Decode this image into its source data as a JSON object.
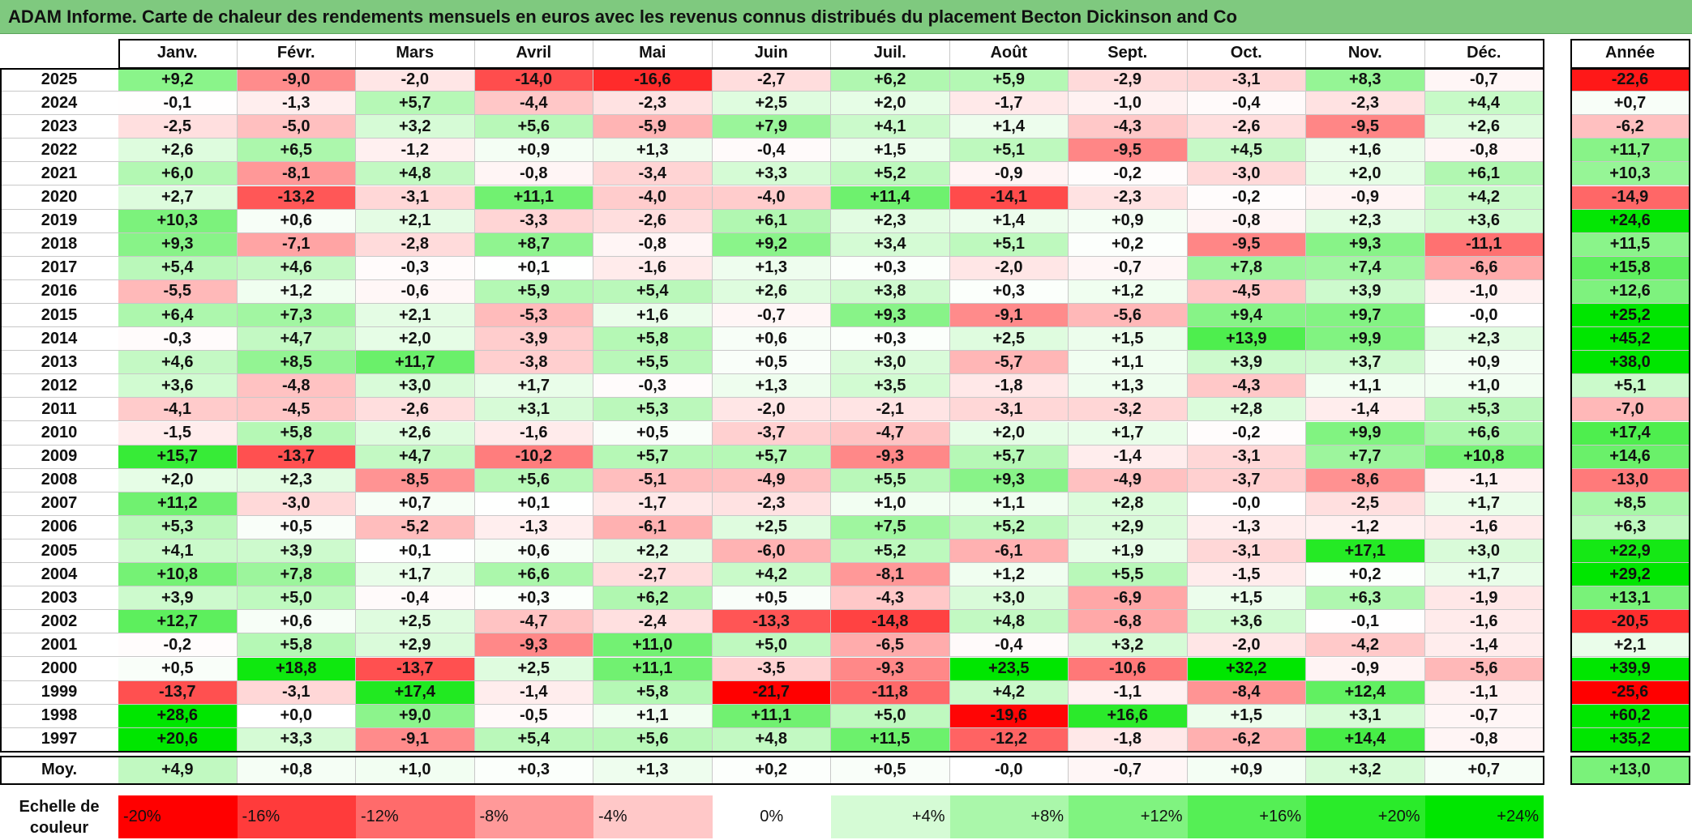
{
  "title": "ADAM Informe. Carte de chaleur des rendements mensuels en euros avec les revenus connus distribués du placement Becton Dickinson and Co",
  "months": [
    "Janv.",
    "Févr.",
    "Mars",
    "Avril",
    "Mai",
    "Juin",
    "Juil.",
    "Août",
    "Sept.",
    "Oct.",
    "Nov.",
    "Déc."
  ],
  "annual_header": "Année",
  "avg_label": "Moy.",
  "scale_label": "Echelle de couleur",
  "chart_data": {
    "type": "heatmap",
    "title": "ADAM Informe. Carte de chaleur des rendements mensuels en euros avec les revenus connus distribués du placement Becton Dickinson and Co",
    "columns": [
      "Janv.",
      "Févr.",
      "Mars",
      "Avril",
      "Mai",
      "Juin",
      "Juil.",
      "Août",
      "Sept.",
      "Oct.",
      "Nov.",
      "Déc."
    ],
    "rows": [
      {
        "year": "2025",
        "values": [
          "+9,2",
          "-9,0",
          "-2,0",
          "-14,0",
          "-16,6",
          "-2,7",
          "+6,2",
          "+5,9",
          "-2,9",
          "-3,1",
          "+8,3",
          "-0,7"
        ],
        "annual": "-22,6"
      },
      {
        "year": "2024",
        "values": [
          "-0,1",
          "-1,3",
          "+5,7",
          "-4,4",
          "-2,3",
          "+2,5",
          "+2,0",
          "-1,7",
          "-1,0",
          "-0,4",
          "-2,3",
          "+4,4"
        ],
        "annual": "+0,7"
      },
      {
        "year": "2023",
        "values": [
          "-2,5",
          "-5,0",
          "+3,2",
          "+5,6",
          "-5,9",
          "+7,9",
          "+4,1",
          "+1,4",
          "-4,3",
          "-2,6",
          "-9,5",
          "+2,6"
        ],
        "annual": "-6,2"
      },
      {
        "year": "2022",
        "values": [
          "+2,6",
          "+6,5",
          "-1,2",
          "+0,9",
          "+1,3",
          "-0,4",
          "+1,5",
          "+5,1",
          "-9,5",
          "+4,5",
          "+1,6",
          "-0,8"
        ],
        "annual": "+11,7"
      },
      {
        "year": "2021",
        "values": [
          "+6,0",
          "-8,1",
          "+4,8",
          "-0,8",
          "-3,4",
          "+3,3",
          "+5,2",
          "-0,9",
          "-0,2",
          "-3,0",
          "+2,0",
          "+6,1"
        ],
        "annual": "+10,3"
      },
      {
        "year": "2020",
        "values": [
          "+2,7",
          "-13,2",
          "-3,1",
          "+11,1",
          "-4,0",
          "-4,0",
          "+11,4",
          "-14,1",
          "-2,3",
          "-0,2",
          "-0,9",
          "+4,2"
        ],
        "annual": "-14,9"
      },
      {
        "year": "2019",
        "values": [
          "+10,3",
          "+0,6",
          "+2,1",
          "-3,3",
          "-2,6",
          "+6,1",
          "+2,3",
          "+1,4",
          "+0,9",
          "-0,8",
          "+2,3",
          "+3,6"
        ],
        "annual": "+24,6"
      },
      {
        "year": "2018",
        "values": [
          "+9,3",
          "-7,1",
          "-2,8",
          "+8,7",
          "-0,8",
          "+9,2",
          "+3,4",
          "+5,1",
          "+0,2",
          "-9,5",
          "+9,3",
          "-11,1"
        ],
        "annual": "+11,5"
      },
      {
        "year": "2017",
        "values": [
          "+5,4",
          "+4,6",
          "-0,3",
          "+0,1",
          "-1,6",
          "+1,3",
          "+0,3",
          "-2,0",
          "-0,7",
          "+7,8",
          "+7,4",
          "-6,6"
        ],
        "annual": "+15,8"
      },
      {
        "year": "2016",
        "values": [
          "-5,5",
          "+1,2",
          "-0,6",
          "+5,9",
          "+5,4",
          "+2,6",
          "+3,8",
          "+0,3",
          "+1,2",
          "-4,5",
          "+3,9",
          "-1,0"
        ],
        "annual": "+12,6"
      },
      {
        "year": "2015",
        "values": [
          "+6,4",
          "+7,3",
          "+2,1",
          "-5,3",
          "+1,6",
          "-0,7",
          "+9,3",
          "-9,1",
          "-5,6",
          "+9,4",
          "+9,7",
          "-0,0"
        ],
        "annual": "+25,2"
      },
      {
        "year": "2014",
        "values": [
          "-0,3",
          "+4,7",
          "+2,0",
          "-3,9",
          "+5,8",
          "+0,6",
          "+0,3",
          "+2,5",
          "+1,5",
          "+13,9",
          "+9,9",
          "+2,3"
        ],
        "annual": "+45,2"
      },
      {
        "year": "2013",
        "values": [
          "+4,6",
          "+8,5",
          "+11,7",
          "-3,8",
          "+5,5",
          "+0,5",
          "+3,0",
          "-5,7",
          "+1,1",
          "+3,9",
          "+3,7",
          "+0,9"
        ],
        "annual": "+38,0"
      },
      {
        "year": "2012",
        "values": [
          "+3,6",
          "-4,8",
          "+3,0",
          "+1,7",
          "-0,3",
          "+1,3",
          "+3,5",
          "-1,8",
          "+1,3",
          "-4,3",
          "+1,1",
          "+1,0"
        ],
        "annual": "+5,1"
      },
      {
        "year": "2011",
        "values": [
          "-4,1",
          "-4,5",
          "-2,6",
          "+3,1",
          "+5,3",
          "-2,0",
          "-2,1",
          "-3,1",
          "-3,2",
          "+2,8",
          "-1,4",
          "+5,3"
        ],
        "annual": "-7,0"
      },
      {
        "year": "2010",
        "values": [
          "-1,5",
          "+5,8",
          "+2,6",
          "-1,6",
          "+0,5",
          "-3,7",
          "-4,7",
          "+2,0",
          "+1,7",
          "-0,2",
          "+9,9",
          "+6,6"
        ],
        "annual": "+17,4"
      },
      {
        "year": "2009",
        "values": [
          "+15,7",
          "-13,7",
          "+4,7",
          "-10,2",
          "+5,7",
          "+5,7",
          "-9,3",
          "+5,7",
          "-1,4",
          "-3,1",
          "+7,7",
          "+10,8"
        ],
        "annual": "+14,6"
      },
      {
        "year": "2008",
        "values": [
          "+2,0",
          "+2,3",
          "-8,5",
          "+5,6",
          "-5,1",
          "-4,9",
          "+5,5",
          "+9,3",
          "-4,9",
          "-3,7",
          "-8,6",
          "-1,1"
        ],
        "annual": "-13,0"
      },
      {
        "year": "2007",
        "values": [
          "+11,2",
          "-3,0",
          "+0,7",
          "+0,1",
          "-1,7",
          "-2,3",
          "+1,0",
          "+1,1",
          "+2,8",
          "-0,0",
          "-2,5",
          "+1,7"
        ],
        "annual": "+8,5"
      },
      {
        "year": "2006",
        "values": [
          "+5,3",
          "+0,5",
          "-5,2",
          "-1,3",
          "-6,1",
          "+2,5",
          "+7,5",
          "+5,2",
          "+2,9",
          "-1,3",
          "-1,2",
          "-1,6"
        ],
        "annual": "+6,3"
      },
      {
        "year": "2005",
        "values": [
          "+4,1",
          "+3,9",
          "+0,1",
          "+0,6",
          "+2,2",
          "-6,0",
          "+5,2",
          "-6,1",
          "+1,9",
          "-3,1",
          "+17,1",
          "+3,0"
        ],
        "annual": "+22,9"
      },
      {
        "year": "2004",
        "values": [
          "+10,8",
          "+7,8",
          "+1,7",
          "+6,6",
          "-2,7",
          "+4,2",
          "-8,1",
          "+1,2",
          "+5,5",
          "-1,5",
          "+0,2",
          "+1,7"
        ],
        "annual": "+29,2"
      },
      {
        "year": "2003",
        "values": [
          "+3,9",
          "+5,0",
          "-0,4",
          "+0,3",
          "+6,2",
          "+0,5",
          "-4,3",
          "+3,0",
          "-6,9",
          "+1,5",
          "+6,3",
          "-1,9"
        ],
        "annual": "+13,1"
      },
      {
        "year": "2002",
        "values": [
          "+12,7",
          "+0,6",
          "+2,5",
          "-4,7",
          "-2,4",
          "-13,3",
          "-14,8",
          "+4,8",
          "-6,8",
          "+3,6",
          "-0,1",
          "-1,6"
        ],
        "annual": "-20,5"
      },
      {
        "year": "2001",
        "values": [
          "-0,2",
          "+5,8",
          "+2,9",
          "-9,3",
          "+11,0",
          "+5,0",
          "-6,5",
          "-0,4",
          "+3,2",
          "-2,0",
          "-4,2",
          "-1,4"
        ],
        "annual": "+2,1"
      },
      {
        "year": "2000",
        "values": [
          "+0,5",
          "+18,8",
          "-13,7",
          "+2,5",
          "+11,1",
          "-3,5",
          "-9,3",
          "+23,5",
          "-10,6",
          "+32,2",
          "-0,9",
          "-5,6"
        ],
        "annual": "+39,9"
      },
      {
        "year": "1999",
        "values": [
          "-13,7",
          "-3,1",
          "+17,4",
          "-1,4",
          "+5,8",
          "-21,7",
          "-11,8",
          "+4,2",
          "-1,1",
          "-8,4",
          "+12,4",
          "-1,1"
        ],
        "annual": "-25,6"
      },
      {
        "year": "1998",
        "values": [
          "+28,6",
          "+0,0",
          "+9,0",
          "-0,5",
          "+1,1",
          "+11,1",
          "+5,0",
          "-19,6",
          "+16,6",
          "+1,5",
          "+3,1",
          "-0,7"
        ],
        "annual": "+60,2"
      },
      {
        "year": "1997",
        "values": [
          "+20,6",
          "+3,3",
          "-9,1",
          "+5,4",
          "+5,6",
          "+4,8",
          "+11,5",
          "-12,2",
          "-1,8",
          "-6,2",
          "+14,4",
          "-0,8"
        ],
        "annual": "+35,2"
      }
    ],
    "average": {
      "values": [
        "+4,9",
        "+0,8",
        "+1,0",
        "+0,3",
        "+1,3",
        "+0,2",
        "+0,5",
        "-0,0",
        "-0,7",
        "+0,9",
        "+3,2",
        "+0,7"
      ],
      "annual": "+13,0"
    },
    "color_scale": [
      {
        "label": "-20%",
        "value": -20,
        "color": "#ff0000"
      },
      {
        "label": "-16%",
        "value": -16,
        "color": "#ff3b3b"
      },
      {
        "label": "-12%",
        "value": -12,
        "color": "#ff6b6b"
      },
      {
        "label": "-8%",
        "value": -8,
        "color": "#ff9999"
      },
      {
        "label": "-4%",
        "value": -4,
        "color": "#ffc8c8"
      },
      {
        "label": "0%",
        "value": 0,
        "color": "#ffffff"
      },
      {
        "label": "+4%",
        "value": 4,
        "color": "#d5fbd5"
      },
      {
        "label": "+8%",
        "value": 8,
        "color": "#aaf7aa"
      },
      {
        "label": "+12%",
        "value": 12,
        "color": "#80f380"
      },
      {
        "label": "+16%",
        "value": 16,
        "color": "#55ef55"
      },
      {
        "label": "+20%",
        "value": 20,
        "color": "#2aeb2a"
      },
      {
        "label": "+24%",
        "value": 24,
        "color": "#00e600"
      }
    ]
  }
}
